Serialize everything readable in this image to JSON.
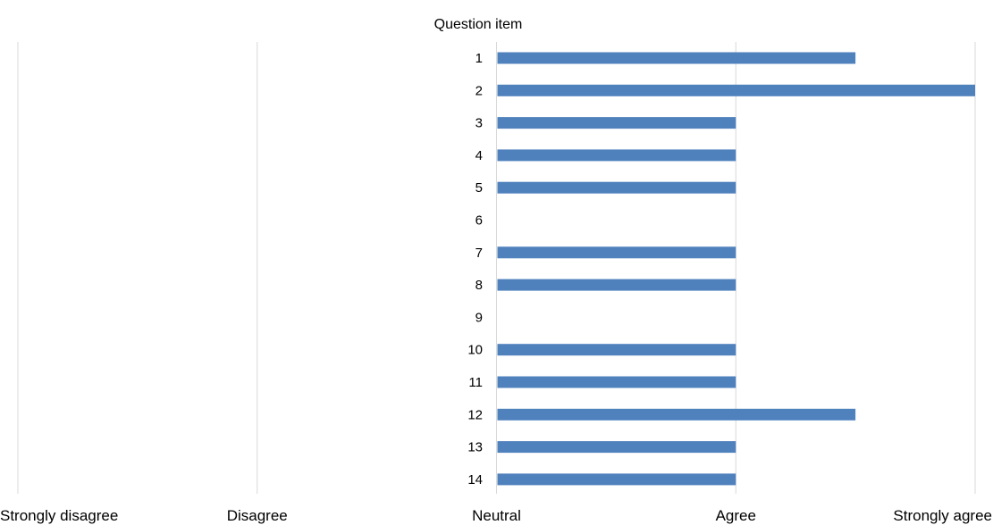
{
  "chart_data": {
    "type": "bar",
    "orientation": "horizontal",
    "title": "",
    "ylabel": "Question item",
    "xlabel": "",
    "categories": [
      "1",
      "2",
      "3",
      "4",
      "5",
      "6",
      "7",
      "8",
      "9",
      "10",
      "11",
      "12",
      "13",
      "14"
    ],
    "values": [
      4.5,
      5,
      4,
      4,
      4,
      3,
      4,
      4,
      3,
      4,
      4,
      4.5,
      4,
      4
    ],
    "x_ticks": [
      {
        "value": 1,
        "label": "Strongly disagree"
      },
      {
        "value": 2,
        "label": "Disagree"
      },
      {
        "value": 3,
        "label": "Neutral"
      },
      {
        "value": 4,
        "label": "Agree"
      },
      {
        "value": 5,
        "label": "Strongly agree"
      }
    ],
    "xlim": [
      1,
      5
    ],
    "baseline": 3,
    "grid": "vertical",
    "legend": "none",
    "bar_color": "#4f81bd",
    "grid_color": "#d9d9d9"
  }
}
